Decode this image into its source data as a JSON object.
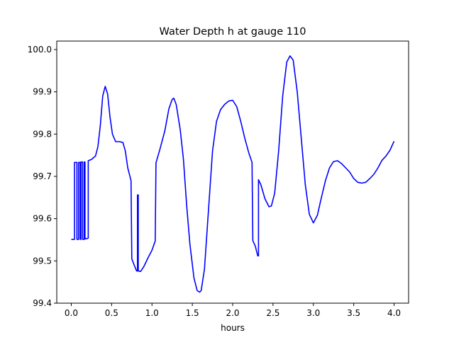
{
  "chart_data": {
    "type": "line",
    "title": "Water Depth h at gauge 110",
    "xlabel": "hours",
    "ylabel": "",
    "xlim": [
      -0.18,
      4.18
    ],
    "ylim": [
      99.4,
      100.02
    ],
    "xticks": [
      0.0,
      0.5,
      1.0,
      1.5,
      2.0,
      2.5,
      3.0,
      3.5,
      4.0
    ],
    "xtick_labels": [
      "0.0",
      "0.5",
      "1.0",
      "1.5",
      "2.0",
      "2.5",
      "3.0",
      "3.5",
      "4.0"
    ],
    "yticks": [
      99.4,
      99.5,
      99.6,
      99.7,
      99.8,
      99.9,
      100.0
    ],
    "ytick_labels": [
      "99.4",
      "99.5",
      "99.6",
      "99.7",
      "99.8",
      "99.9",
      "100.0"
    ],
    "grid": false,
    "legend": "none",
    "series": [
      {
        "color": "#0000ff",
        "points": [
          [
            0.0,
            99.551
          ],
          [
            0.04,
            99.551
          ],
          [
            0.04,
            99.733
          ],
          [
            0.07,
            99.733
          ],
          [
            0.07,
            99.551
          ],
          [
            0.09,
            99.551
          ],
          [
            0.09,
            99.733
          ],
          [
            0.11,
            99.733
          ],
          [
            0.11,
            99.551
          ],
          [
            0.12,
            99.551
          ],
          [
            0.12,
            99.734
          ],
          [
            0.14,
            99.734
          ],
          [
            0.14,
            99.551
          ],
          [
            0.16,
            99.551
          ],
          [
            0.16,
            99.734
          ],
          [
            0.17,
            99.734
          ],
          [
            0.17,
            99.552
          ],
          [
            0.2,
            99.553
          ],
          [
            0.21,
            99.554
          ],
          [
            0.21,
            99.737
          ],
          [
            0.25,
            99.74
          ],
          [
            0.3,
            99.748
          ],
          [
            0.33,
            99.77
          ],
          [
            0.36,
            99.82
          ],
          [
            0.39,
            99.89
          ],
          [
            0.42,
            99.913
          ],
          [
            0.45,
            99.895
          ],
          [
            0.48,
            99.84
          ],
          [
            0.51,
            99.8
          ],
          [
            0.55,
            99.782
          ],
          [
            0.6,
            99.782
          ],
          [
            0.64,
            99.78
          ],
          [
            0.67,
            99.76
          ],
          [
            0.7,
            99.72
          ],
          [
            0.74,
            99.69
          ],
          [
            0.75,
            99.505
          ],
          [
            0.78,
            99.49
          ],
          [
            0.81,
            99.476
          ],
          [
            0.82,
            99.476
          ],
          [
            0.82,
            99.656
          ],
          [
            0.83,
            99.656
          ],
          [
            0.83,
            99.476
          ],
          [
            0.86,
            99.475
          ],
          [
            0.9,
            99.487
          ],
          [
            0.95,
            99.507
          ],
          [
            1.0,
            99.525
          ],
          [
            1.04,
            99.547
          ],
          [
            1.05,
            99.732
          ],
          [
            1.1,
            99.765
          ],
          [
            1.16,
            99.808
          ],
          [
            1.21,
            99.86
          ],
          [
            1.25,
            99.882
          ],
          [
            1.27,
            99.885
          ],
          [
            1.3,
            99.87
          ],
          [
            1.35,
            99.81
          ],
          [
            1.39,
            99.74
          ],
          [
            1.43,
            99.63
          ],
          [
            1.47,
            99.54
          ],
          [
            1.52,
            99.46
          ],
          [
            1.56,
            99.43
          ],
          [
            1.59,
            99.426
          ],
          [
            1.61,
            99.43
          ],
          [
            1.65,
            99.48
          ],
          [
            1.7,
            99.62
          ],
          [
            1.75,
            99.76
          ],
          [
            1.8,
            99.83
          ],
          [
            1.85,
            99.858
          ],
          [
            1.9,
            99.87
          ],
          [
            1.95,
            99.878
          ],
          [
            2.0,
            99.88
          ],
          [
            2.05,
            99.865
          ],
          [
            2.1,
            99.83
          ],
          [
            2.15,
            99.79
          ],
          [
            2.2,
            99.755
          ],
          [
            2.24,
            99.733
          ],
          [
            2.25,
            99.548
          ],
          [
            2.28,
            99.535
          ],
          [
            2.31,
            99.512
          ],
          [
            2.32,
            99.512
          ],
          [
            2.32,
            99.692
          ],
          [
            2.35,
            99.68
          ],
          [
            2.4,
            99.647
          ],
          [
            2.45,
            99.628
          ],
          [
            2.48,
            99.63
          ],
          [
            2.52,
            99.66
          ],
          [
            2.57,
            99.76
          ],
          [
            2.62,
            99.89
          ],
          [
            2.67,
            99.97
          ],
          [
            2.71,
            99.985
          ],
          [
            2.75,
            99.975
          ],
          [
            2.8,
            99.9
          ],
          [
            2.85,
            99.79
          ],
          [
            2.9,
            99.68
          ],
          [
            2.95,
            99.61
          ],
          [
            3.0,
            99.59
          ],
          [
            3.05,
            99.608
          ],
          [
            3.1,
            99.65
          ],
          [
            3.15,
            99.69
          ],
          [
            3.2,
            99.72
          ],
          [
            3.25,
            99.735
          ],
          [
            3.3,
            99.737
          ],
          [
            3.35,
            99.73
          ],
          [
            3.4,
            99.72
          ],
          [
            3.45,
            99.71
          ],
          [
            3.5,
            99.695
          ],
          [
            3.55,
            99.686
          ],
          [
            3.6,
            99.684
          ],
          [
            3.65,
            99.686
          ],
          [
            3.7,
            99.695
          ],
          [
            3.75,
            99.705
          ],
          [
            3.8,
            99.72
          ],
          [
            3.85,
            99.738
          ],
          [
            3.9,
            99.748
          ],
          [
            3.95,
            99.762
          ],
          [
            4.0,
            99.783
          ]
        ]
      }
    ]
  }
}
